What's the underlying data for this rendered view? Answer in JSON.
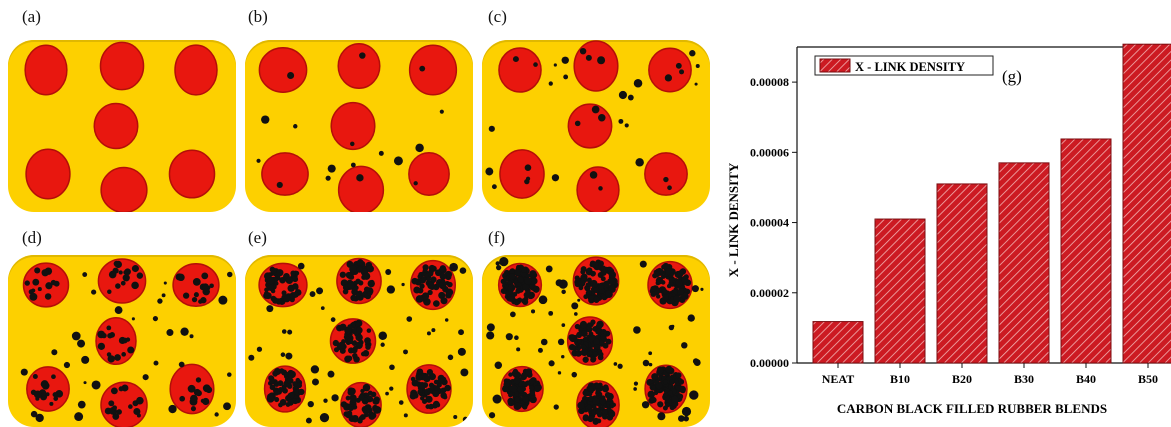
{
  "panels": [
    {
      "label": "(a)",
      "clusters": [
        [
          [
            0.53,
            0.28
          ],
          [
            0.51,
            0.31
          ],
          [
            0.57,
            0.3
          ]
        ],
        [
          [
            0.48,
            0.29
          ],
          [
            0.54,
            0.33
          ]
        ],
        [
          [
            0.45,
            0.3
          ],
          [
            0.52,
            0.31
          ],
          [
            0.58,
            0.27
          ]
        ],
        [
          [
            0.5,
            0.32
          ]
        ],
        [
          [
            0.47,
            0.3
          ],
          [
            0.55,
            0.28
          ]
        ],
        [
          [
            0.52,
            0.29
          ],
          [
            0.49,
            0.33
          ]
        ]
      ],
      "filler": 0,
      "seed": 3
    },
    {
      "label": "(b)",
      "clusters": [
        [
          1
        ],
        [
          1
        ],
        [
          1
        ],
        [
          1
        ],
        [
          1
        ],
        [
          1
        ]
      ],
      "filler": 0.15,
      "seed": 11
    },
    {
      "label": "(c)",
      "clusters": [
        [
          3
        ],
        [
          3
        ],
        [
          2
        ],
        [
          3
        ],
        [
          3
        ],
        [
          2
        ]
      ],
      "filler": 0.35,
      "seed": 21
    },
    {
      "label": "(d)",
      "clusters": [
        [
          14
        ],
        [
          14
        ],
        [
          14
        ],
        [
          14
        ],
        [
          14
        ],
        [
          14
        ]
      ],
      "filler": 0.55,
      "seed": 31
    },
    {
      "label": "(e)",
      "clusters": [
        [
          40
        ],
        [
          40
        ],
        [
          40
        ],
        [
          40
        ],
        [
          40
        ],
        [
          40
        ]
      ],
      "filler": 0.75,
      "seed": 41
    },
    {
      "label": "(f)",
      "clusters": [
        [
          80
        ],
        [
          80
        ],
        [
          80
        ],
        [
          80
        ],
        [
          80
        ],
        [
          80
        ]
      ],
      "filler": 0.9,
      "seed": 51
    }
  ],
  "colors": {
    "matrix": "#fdd000",
    "domain": "#e8170f",
    "domain_edge": "#b30f08",
    "carbon": "#111111",
    "bar": "#cc1a22",
    "bar_edge": "#7a0c10"
  },
  "chart_data": {
    "type": "bar",
    "panel_label": "(g)",
    "categories": [
      "NEAT",
      "B10",
      "B20",
      "B30",
      "B40",
      "B50"
    ],
    "series": [
      {
        "name": "X - LINK DENSITY",
        "values": [
          1.18e-05,
          4.1e-05,
          5.1e-05,
          5.7e-05,
          6.38e-05,
          9.08e-05
        ]
      }
    ],
    "xlabel": "CARBON BLACK FILLED RUBBER BLENDS",
    "ylabel": "X - LINK DENSITY",
    "ylim": [
      0,
      9e-05
    ],
    "yticks": [
      "0.00000",
      "0.00002",
      "0.00004",
      "0.00006",
      "0.00008"
    ],
    "legend": "top-left",
    "grid": false,
    "pattern": "diagonal-hatch"
  }
}
